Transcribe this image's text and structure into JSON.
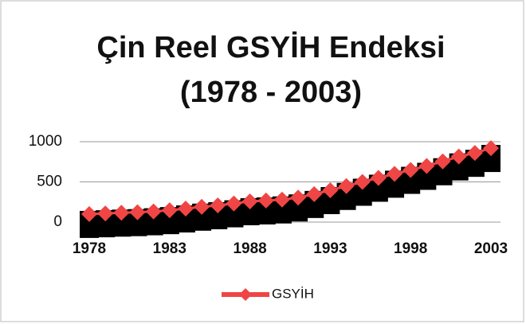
{
  "chart_data": {
    "type": "line",
    "title": "Çin Reel GSYİH Endeksi",
    "subtitle": "(1978 - 2003)",
    "categories": [
      "1978",
      null,
      null,
      null,
      null,
      "1983",
      null,
      null,
      null,
      null,
      "1988",
      null,
      null,
      null,
      null,
      "1993",
      null,
      null,
      null,
      null,
      "1998",
      null,
      null,
      null,
      null,
      "2003"
    ],
    "series": [
      {
        "name": "GSYİH",
        "color": "#f04545",
        "values": [
          100,
          108,
          116,
          122,
          133,
          147,
          168,
          190,
          208,
          232,
          258,
          268,
          280,
          305,
          348,
          396,
          448,
          500,
          550,
          600,
          648,
          698,
          755,
          815,
          860,
          920
        ]
      }
    ],
    "ylim": [
      0,
      1000
    ],
    "yticks": [
      0,
      500,
      1000
    ],
    "grid": true,
    "legend": "bottom"
  }
}
